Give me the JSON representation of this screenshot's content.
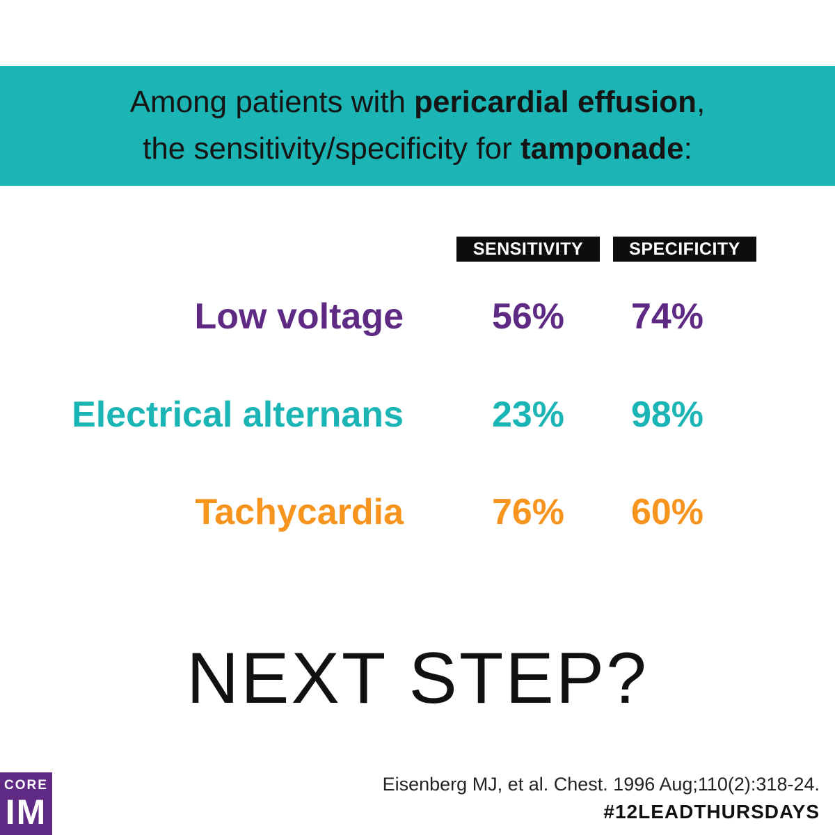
{
  "header": {
    "line1": {
      "pre": "Among patients with ",
      "bold": "pericardial effusion",
      "post": ","
    },
    "line2": {
      "pre": "the sensitivity/specificity for ",
      "bold": "tamponade",
      "post": ":"
    }
  },
  "columns": {
    "sensitivity": "SENSITIVITY",
    "specificity": "SPECIFICITY"
  },
  "rows": [
    {
      "label": "Low voltage",
      "sensitivity": "56%",
      "specificity": "74%",
      "color": "#5e2a84"
    },
    {
      "label": "Electrical alternans",
      "sensitivity": "23%",
      "specificity": "98%",
      "color": "#1cb5b5"
    },
    {
      "label": "Tachycardia",
      "sensitivity": "76%",
      "specificity": "60%",
      "color": "#f7941d"
    }
  ],
  "question": "NEXT STEP?",
  "citation": "Eisenberg MJ, et al. Chest. 1996 Aug;110(2):318-24.",
  "hashtag": "#12LEADTHURSDAYS",
  "logo": {
    "line1": "CORE",
    "line2": "IM"
  },
  "colors": {
    "banner": "#1cb5b5",
    "purple": "#5e2a84",
    "teal": "#1cb5b5",
    "orange": "#f7941d"
  }
}
